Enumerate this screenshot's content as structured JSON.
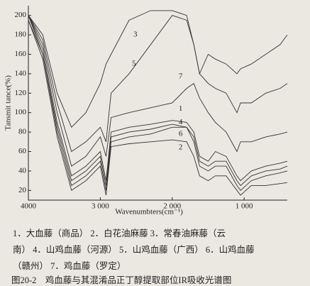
{
  "chart_data": {
    "type": "line",
    "y_label": "Tansmit tance(%)",
    "x_label": "Wavenumbters(cm⁻¹)",
    "x": [
      4000,
      3800,
      3600,
      3400,
      3200,
      3000,
      2920,
      2850,
      2600,
      2300,
      2000,
      1800,
      1700,
      1620,
      1500,
      1400,
      1250,
      1100,
      1050,
      900,
      700,
      500,
      400
    ],
    "xlim": [
      4000,
      400
    ],
    "xticks": [
      {
        "value": 4000,
        "label": "4000"
      },
      {
        "value": 3000,
        "label": "3 000"
      },
      {
        "value": 2000,
        "label": "2 000"
      },
      {
        "value": 1000,
        "label": "1 000"
      }
    ],
    "ylim": [
      10,
      210
    ],
    "yticks": [
      20,
      40,
      60,
      80,
      100,
      120,
      140,
      160,
      180,
      200
    ],
    "color": "#333333",
    "series": [
      {
        "name": "1",
        "values": [
          200,
          165,
          90,
          35,
          45,
          60,
          30,
          80,
          85,
          88,
          92,
          90,
          80,
          55,
          50,
          60,
          55,
          35,
          30,
          40,
          45,
          48,
          50
        ]
      },
      {
        "name": "2",
        "values": [
          195,
          155,
          75,
          20,
          30,
          45,
          15,
          65,
          68,
          70,
          72,
          70,
          55,
          35,
          30,
          35,
          35,
          20,
          15,
          25,
          25,
          27,
          28
        ]
      },
      {
        "name": "3",
        "values": [
          200,
          180,
          120,
          85,
          100,
          130,
          150,
          160,
          195,
          205,
          205,
          200,
          170,
          140,
          160,
          155,
          150,
          140,
          145,
          150,
          160,
          170,
          180
        ]
      },
      {
        "name": "4",
        "values": [
          200,
          160,
          85,
          30,
          40,
          55,
          25,
          75,
          80,
          83,
          88,
          85,
          75,
          50,
          45,
          50,
          50,
          30,
          25,
          35,
          40,
          42,
          45
        ]
      },
      {
        "name": "5",
        "values": [
          200,
          175,
          110,
          60,
          70,
          85,
          70,
          120,
          140,
          170,
          200,
          195,
          170,
          140,
          130,
          125,
          120,
          100,
          110,
          110,
          120,
          125,
          130
        ]
      },
      {
        "name": "6",
        "values": [
          195,
          160,
          80,
          25,
          35,
          50,
          20,
          70,
          75,
          78,
          85,
          85,
          70,
          45,
          40,
          45,
          45,
          25,
          20,
          30,
          35,
          38,
          40
        ]
      },
      {
        "name": "7",
        "values": [
          200,
          170,
          100,
          45,
          55,
          75,
          55,
          95,
          100,
          105,
          110,
          125,
          130,
          115,
          100,
          90,
          80,
          60,
          70,
          70,
          75,
          78,
          80
        ]
      }
    ]
  },
  "caption": {
    "legend_lines": [
      "1．大血藤（商品）  2．白花油麻藤  3．常春油麻藤（云",
      "南）  4．山鸡血藤（河源）  5．山鸡血藤（广西）  6．山鸡血藤",
      "（赣州）  7．鸡血藤（罗定）"
    ],
    "title": "图20-2　鸡血藤与其混淆品正丁醇提取部位IR吸收光谱图"
  }
}
